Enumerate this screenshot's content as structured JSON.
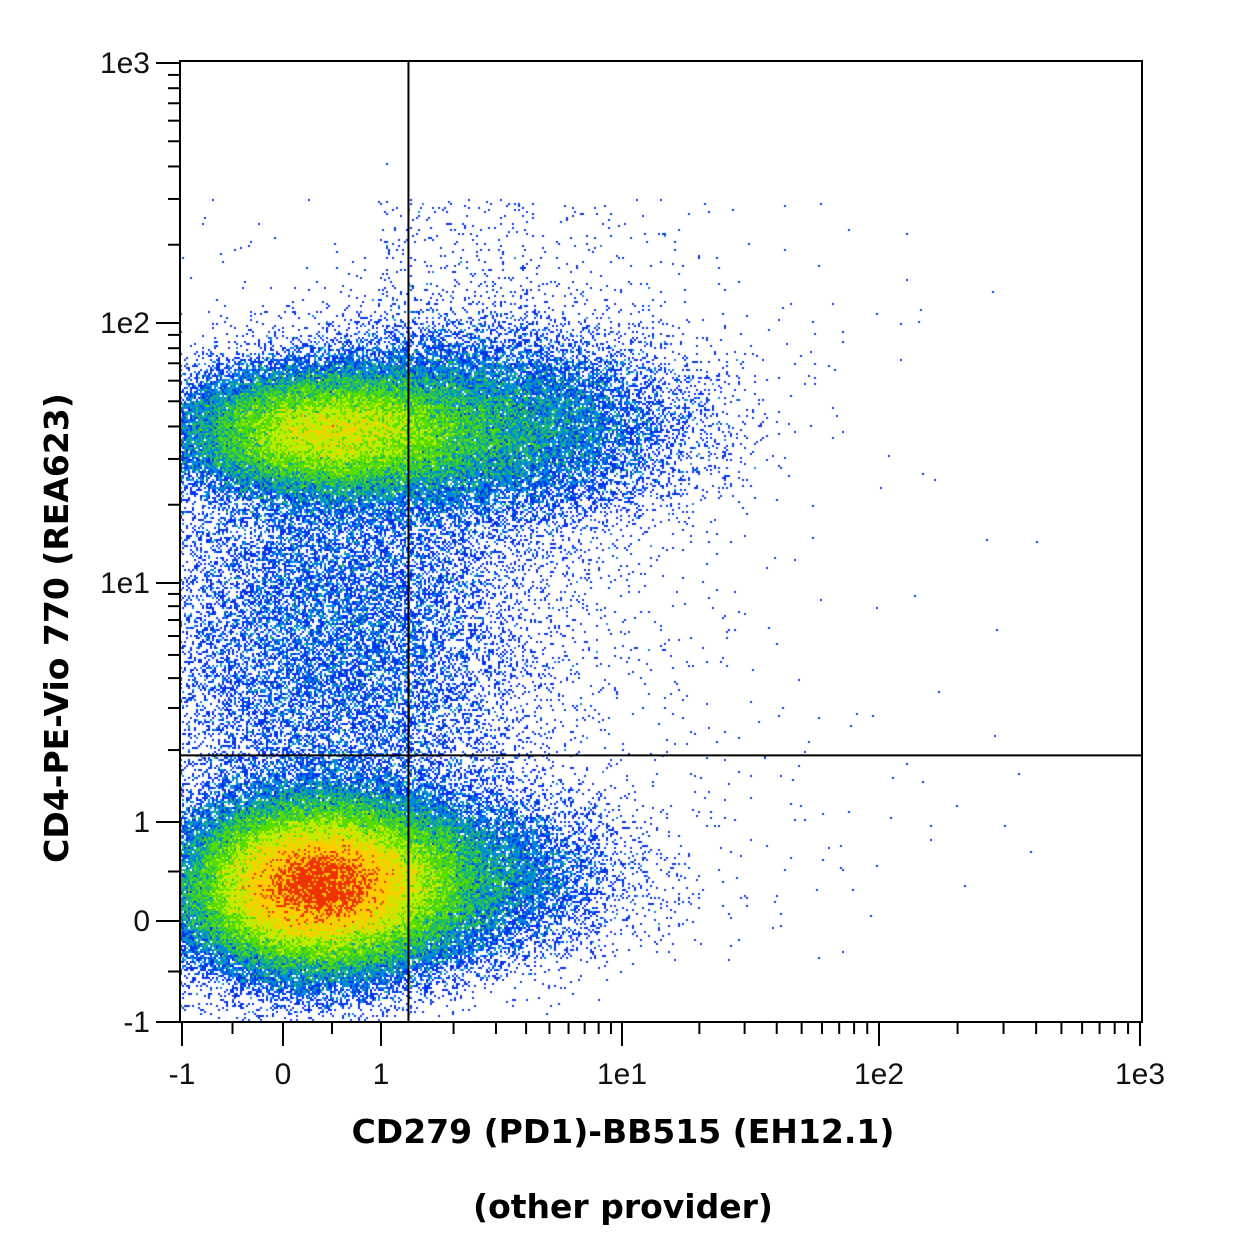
{
  "chart_data": {
    "type": "scatter",
    "subtype": "flow-cytometry-density-dot-plot",
    "title": "",
    "xlabel": "CD279 (PD1)-BB515 (EH12.1)",
    "xlabel_line2": "(other provider)",
    "ylabel": "CD4-PE-Vio 770 (REA623)",
    "x_scale": "biexponential",
    "y_scale": "biexponential",
    "xlim": [
      -1,
      1000
    ],
    "ylim": [
      -1,
      1000
    ],
    "x_ticks": [
      {
        "value": -1,
        "label": "-1"
      },
      {
        "value": 0,
        "label": "0"
      },
      {
        "value": 1,
        "label": "1"
      },
      {
        "value": 10,
        "label": "1e1"
      },
      {
        "value": 100,
        "label": "1e2"
      },
      {
        "value": 1000,
        "label": "1e3"
      }
    ],
    "y_ticks": [
      {
        "value": -1,
        "label": "-1"
      },
      {
        "value": 0,
        "label": "0"
      },
      {
        "value": 1,
        "label": "1"
      },
      {
        "value": 10,
        "label": "1e1"
      },
      {
        "value": 100,
        "label": "1e2"
      },
      {
        "value": 1000,
        "label": "1e3"
      }
    ],
    "quadrant_gate": {
      "x": 1.3,
      "y": 1.9
    },
    "grid": false,
    "legend": "none",
    "density_colors": [
      "#0000cc",
      "#0033ee",
      "#0088dd",
      "#22bb66",
      "#55dd00",
      "#bbee00",
      "#ffcc00",
      "#ee3300"
    ],
    "populations": [
      {
        "x": 0.35,
        "y": 0.35,
        "density": 1.0
      },
      {
        "x": 0.45,
        "y": 38,
        "density": 0.6
      },
      {
        "x": 2.5,
        "y": 40,
        "density": 0.3
      },
      {
        "x": 1.2,
        "y": 0.45,
        "density": 0.45
      },
      {
        "x": 0.5,
        "y": 6,
        "density": 0.2
      }
    ]
  }
}
